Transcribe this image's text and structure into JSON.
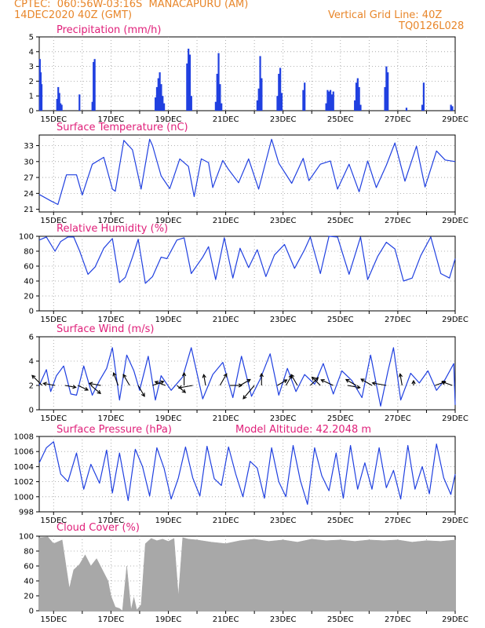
{
  "header": {
    "line1_left": "CPTEC:  060:56W-03:16S  MANACAPURU (AM)",
    "line2_left": "14DEC2020 40Z (GMT)",
    "line2_right": "Vertical Grid Line: 40Z",
    "line3_right": "TQ0126L028"
  },
  "colors": {
    "header": "#e8862a",
    "title": "#e0207a",
    "series": "#2040e0",
    "cloud": "#a8a8a8",
    "grid": "#9a9a9a"
  },
  "x_tick_labels": [
    "15DEC",
    "17DEC",
    "19DEC",
    "21DEC",
    "23DEC",
    "25DEC",
    "27DEC",
    "29DEC"
  ],
  "chart_data": [
    {
      "type": "bar",
      "title": "Precipitation (mm/h)",
      "ylim": [
        0,
        5
      ],
      "yticks": [
        0,
        1,
        2,
        3,
        4,
        5
      ],
      "x_range_days": [
        14.5,
        29.0
      ],
      "x": [
        14.52,
        14.55,
        14.58,
        15.12,
        15.16,
        15.2,
        15.24,
        15.28,
        15.9,
        16.35,
        16.39,
        16.43,
        18.55,
        18.6,
        18.65,
        18.7,
        18.75,
        18.8,
        18.85,
        19.65,
        19.7,
        19.75,
        19.8,
        20.65,
        20.7,
        20.75,
        20.8,
        20.85,
        22.1,
        22.15,
        22.2,
        22.25,
        22.8,
        22.85,
        22.9,
        22.95,
        23.7,
        23.75,
        24.5,
        24.55,
        24.6,
        24.65,
        24.7,
        24.75,
        25.5,
        25.55,
        25.6,
        25.65,
        25.7,
        26.55,
        26.6,
        26.65,
        27.3,
        27.85,
        27.9,
        28.85,
        28.9
      ],
      "values": [
        3.5,
        2.6,
        1.8,
        0.8,
        1.6,
        1.2,
        0.5,
        0.4,
        1.1,
        0.6,
        3.3,
        3.5,
        0.9,
        1.6,
        2.2,
        2.6,
        1.8,
        1.0,
        0.5,
        3.2,
        4.2,
        3.8,
        1.0,
        0.6,
        2.5,
        3.9,
        1.8,
        0.5,
        0.7,
        1.5,
        3.7,
        2.2,
        1.0,
        2.5,
        2.9,
        1.2,
        1.4,
        1.9,
        0.5,
        1.4,
        1.3,
        1.4,
        1.1,
        1.3,
        0.7,
        1.9,
        2.2,
        1.6,
        0.4,
        1.6,
        3.0,
        2.6,
        0.2,
        0.4,
        1.9,
        0.4,
        0.3
      ]
    },
    {
      "type": "line",
      "title": "Surface Temperature (nC)",
      "ylim": [
        20.5,
        35
      ],
      "yticks": [
        21,
        24,
        27,
        30,
        33
      ],
      "x": [
        14.5,
        14.9,
        15.15,
        15.45,
        15.8,
        16.0,
        16.35,
        16.75,
        17.05,
        17.15,
        17.45,
        17.75,
        18.05,
        18.35,
        18.45,
        18.75,
        19.05,
        19.4,
        19.7,
        19.9,
        20.15,
        20.4,
        20.55,
        20.9,
        21.1,
        21.45,
        21.8,
        22.15,
        22.6,
        22.85,
        23.3,
        23.7,
        23.9,
        24.3,
        24.65,
        24.9,
        25.3,
        25.65,
        25.95,
        26.25,
        26.6,
        26.9,
        27.25,
        27.65,
        27.95,
        28.35,
        28.65,
        29.0
      ],
      "values": [
        23.8,
        22.6,
        21.9,
        27.5,
        27.5,
        23.7,
        29.5,
        30.8,
        24.8,
        24.4,
        34.0,
        32.2,
        24.8,
        34.2,
        33.0,
        27.3,
        24.9,
        30.5,
        29.1,
        23.4,
        30.5,
        29.8,
        25.1,
        30.2,
        28.5,
        26.0,
        30.5,
        24.8,
        34.2,
        29.7,
        25.9,
        30.6,
        26.4,
        29.5,
        30.1,
        24.8,
        29.5,
        24.3,
        30.1,
        25.1,
        29.3,
        33.5,
        26.3,
        32.9,
        25.2,
        32.0,
        30.3,
        30.0
      ]
    },
    {
      "type": "line",
      "title": "Relative Humidity (%)",
      "ylim": [
        0,
        100
      ],
      "yticks": [
        0,
        20,
        40,
        60,
        80,
        100
      ],
      "x": [
        14.5,
        14.75,
        15.05,
        15.25,
        15.5,
        15.7,
        15.9,
        16.2,
        16.45,
        16.75,
        17.05,
        17.3,
        17.5,
        17.75,
        17.95,
        18.2,
        18.45,
        18.75,
        18.95,
        19.3,
        19.55,
        19.8,
        20.2,
        20.4,
        20.65,
        20.95,
        21.25,
        21.5,
        21.8,
        22.1,
        22.4,
        22.7,
        23.05,
        23.4,
        23.75,
        23.95,
        24.3,
        24.6,
        24.9,
        25.3,
        25.7,
        25.95,
        26.3,
        26.6,
        26.9,
        27.2,
        27.5,
        27.8,
        28.15,
        28.5,
        28.8,
        29.0
      ],
      "values": [
        95.0,
        99.0,
        80.0,
        93.0,
        99.0,
        99.0,
        81.0,
        49.0,
        59.0,
        84.0,
        97.0,
        38.0,
        45.0,
        72.0,
        96.0,
        37.0,
        46.0,
        72.0,
        70.0,
        95.0,
        98.0,
        50.0,
        72.0,
        86.0,
        42.0,
        98.0,
        44.0,
        84.0,
        58.0,
        82.0,
        46.0,
        75.0,
        89.0,
        57.0,
        82.0,
        99.0,
        50.0,
        100.0,
        99.0,
        49.0,
        99.0,
        42.0,
        73.0,
        92.0,
        83.0,
        40.0,
        44.0,
        74.0,
        99.0,
        50.0,
        44.0,
        70.0
      ]
    },
    {
      "type": "line",
      "title": "Surface Wind (m/s)",
      "ylim": [
        0,
        6
      ],
      "yticks": [
        0,
        2,
        4,
        6
      ],
      "x": [
        14.5,
        14.75,
        14.9,
        15.1,
        15.35,
        15.6,
        15.8,
        16.05,
        16.35,
        16.6,
        16.85,
        17.05,
        17.3,
        17.55,
        17.8,
        18.0,
        18.3,
        18.55,
        18.75,
        19.1,
        19.5,
        19.8,
        20.2,
        20.55,
        20.9,
        21.25,
        21.55,
        21.9,
        22.2,
        22.55,
        22.85,
        23.15,
        23.45,
        23.75,
        24.1,
        24.4,
        24.75,
        25.05,
        25.4,
        25.75,
        26.05,
        26.4,
        26.65,
        26.85,
        27.1,
        27.45,
        27.75,
        28.05,
        28.35,
        28.65,
        28.95,
        29.0
      ],
      "values": [
        2.0,
        3.3,
        1.5,
        2.8,
        3.6,
        1.3,
        1.2,
        3.6,
        1.2,
        2.4,
        3.4,
        5.1,
        0.8,
        4.5,
        3.2,
        1.6,
        4.4,
        0.8,
        2.8,
        1.6,
        2.7,
        5.1,
        0.9,
        2.9,
        3.9,
        1.0,
        4.4,
        1.1,
        2.5,
        4.6,
        1.2,
        3.4,
        1.5,
        2.9,
        2.1,
        3.8,
        1.3,
        3.2,
        2.4,
        1.0,
        4.5,
        0.3,
        3.1,
        5.1,
        0.8,
        3.0,
        2.2,
        3.2,
        1.6,
        2.5,
        3.8,
        0.4
      ],
      "barbs_x": [
        14.6,
        15.05,
        15.4,
        15.85,
        16.3,
        16.65,
        17.25,
        17.65,
        17.95,
        18.45,
        18.9,
        19.3,
        19.55,
        19.85,
        20.3,
        20.8,
        21.15,
        21.5,
        22.0,
        22.25,
        22.8,
        23.1,
        23.5,
        23.95,
        24.3,
        24.75,
        25.25,
        25.55,
        26.1,
        26.6,
        27.15,
        27.55,
        28.3,
        28.9
      ],
      "barbs_y": [
        2.0,
        2.0,
        2.0,
        2.0,
        2.0,
        2.0,
        2.0,
        2.0,
        2.0,
        2.0,
        2.0,
        2.0,
        2.0,
        2.0,
        2.0,
        2.0,
        2.0,
        2.0,
        2.0,
        2.0,
        2.0,
        2.0,
        2.0,
        2.0,
        2.0,
        2.0,
        2.0,
        2.0,
        2.0,
        2.0,
        2.0,
        2.0,
        2.0,
        2.0
      ],
      "barbs_angle": [
        -135,
        -170,
        10,
        25,
        40,
        -170,
        -110,
        -120,
        60,
        -20,
        -160,
        40,
        -90,
        170,
        -100,
        -60,
        0,
        -30,
        130,
        -90,
        -30,
        -60,
        -120,
        -45,
        -135,
        -155,
        10,
        -150,
        -150,
        -170,
        -100,
        -90,
        -20,
        -160
      ],
      "barbs_len": [
        18,
        15,
        14,
        14,
        16,
        15,
        17,
        16,
        16,
        15,
        14,
        14,
        16,
        18,
        14,
        17,
        15,
        15,
        22,
        15,
        14,
        15,
        16,
        14,
        15,
        17,
        16,
        15,
        16,
        18,
        15,
        6,
        14,
        14
      ]
    },
    {
      "type": "line",
      "title": "Surface Pressure (hPa)",
      "subtitle": "Model Altitude: 42.2048 m",
      "ylim": [
        998,
        1008
      ],
      "yticks": [
        998,
        1000,
        1002,
        1004,
        1006,
        1008
      ],
      "x": [
        14.5,
        14.75,
        15.0,
        15.25,
        15.5,
        15.8,
        16.05,
        16.3,
        16.6,
        16.85,
        17.05,
        17.3,
        17.6,
        17.85,
        18.1,
        18.35,
        18.6,
        18.85,
        19.1,
        19.35,
        19.6,
        19.85,
        20.1,
        20.35,
        20.6,
        20.85,
        21.1,
        21.35,
        21.6,
        21.85,
        22.1,
        22.35,
        22.6,
        22.85,
        23.1,
        23.35,
        23.6,
        23.85,
        24.1,
        24.35,
        24.6,
        24.85,
        25.1,
        25.35,
        25.6,
        25.85,
        26.1,
        26.35,
        26.6,
        26.85,
        27.1,
        27.35,
        27.6,
        27.85,
        28.1,
        28.35,
        28.6,
        28.85,
        29.0
      ],
      "values": [
        1004.5,
        1006.5,
        1007.3,
        1003.0,
        1002.0,
        1005.8,
        1001.0,
        1004.3,
        1001.8,
        1006.2,
        1000.5,
        1005.8,
        999.5,
        1006.3,
        1004.0,
        1000.1,
        1006.5,
        1003.8,
        999.7,
        1002.5,
        1006.6,
        1002.5,
        1000.1,
        1006.7,
        1002.4,
        1001.5,
        1006.6,
        1003.0,
        1000.0,
        1004.7,
        1003.8,
        999.8,
        1006.5,
        1002.0,
        1000.0,
        1006.8,
        1002.2,
        999.0,
        1006.5,
        1002.8,
        1000.8,
        1005.8,
        999.8,
        1006.8,
        1001.0,
        1004.5,
        1001.0,
        1006.5,
        1001.2,
        1003.5,
        999.7,
        1006.8,
        1001.0,
        1004.0,
        1000.4,
        1007.0,
        1002.5,
        1000.3,
        1003.0
      ]
    },
    {
      "type": "area",
      "title": "Cloud Cover (%)",
      "ylim": [
        0,
        100
      ],
      "yticks": [
        0,
        20,
        40,
        60,
        80,
        100
      ],
      "x": [
        14.5,
        14.8,
        15.0,
        15.3,
        15.55,
        15.7,
        15.9,
        16.1,
        16.3,
        16.5,
        16.7,
        16.9,
        17.0,
        17.15,
        17.3,
        17.4,
        17.55,
        17.7,
        17.8,
        17.9,
        18.05,
        18.2,
        18.4,
        18.6,
        18.8,
        19.0,
        19.2,
        19.35,
        19.5,
        19.7,
        20.0,
        20.5,
        21.0,
        21.5,
        22.0,
        22.5,
        23.0,
        23.5,
        24.0,
        24.5,
        25.0,
        25.5,
        26.0,
        26.5,
        27.0,
        27.5,
        28.0,
        28.5,
        29.0
      ],
      "values": [
        98,
        99,
        90,
        95,
        30,
        55,
        62,
        75,
        60,
        70,
        55,
        40,
        20,
        5,
        3,
        0,
        60,
        1,
        18,
        1,
        8,
        90,
        97,
        94,
        96,
        93,
        97,
        20,
        98,
        96,
        95,
        92,
        90,
        94,
        96,
        93,
        95,
        92,
        96,
        94,
        95,
        93,
        95,
        94,
        95,
        92,
        94,
        93,
        95
      ]
    }
  ]
}
